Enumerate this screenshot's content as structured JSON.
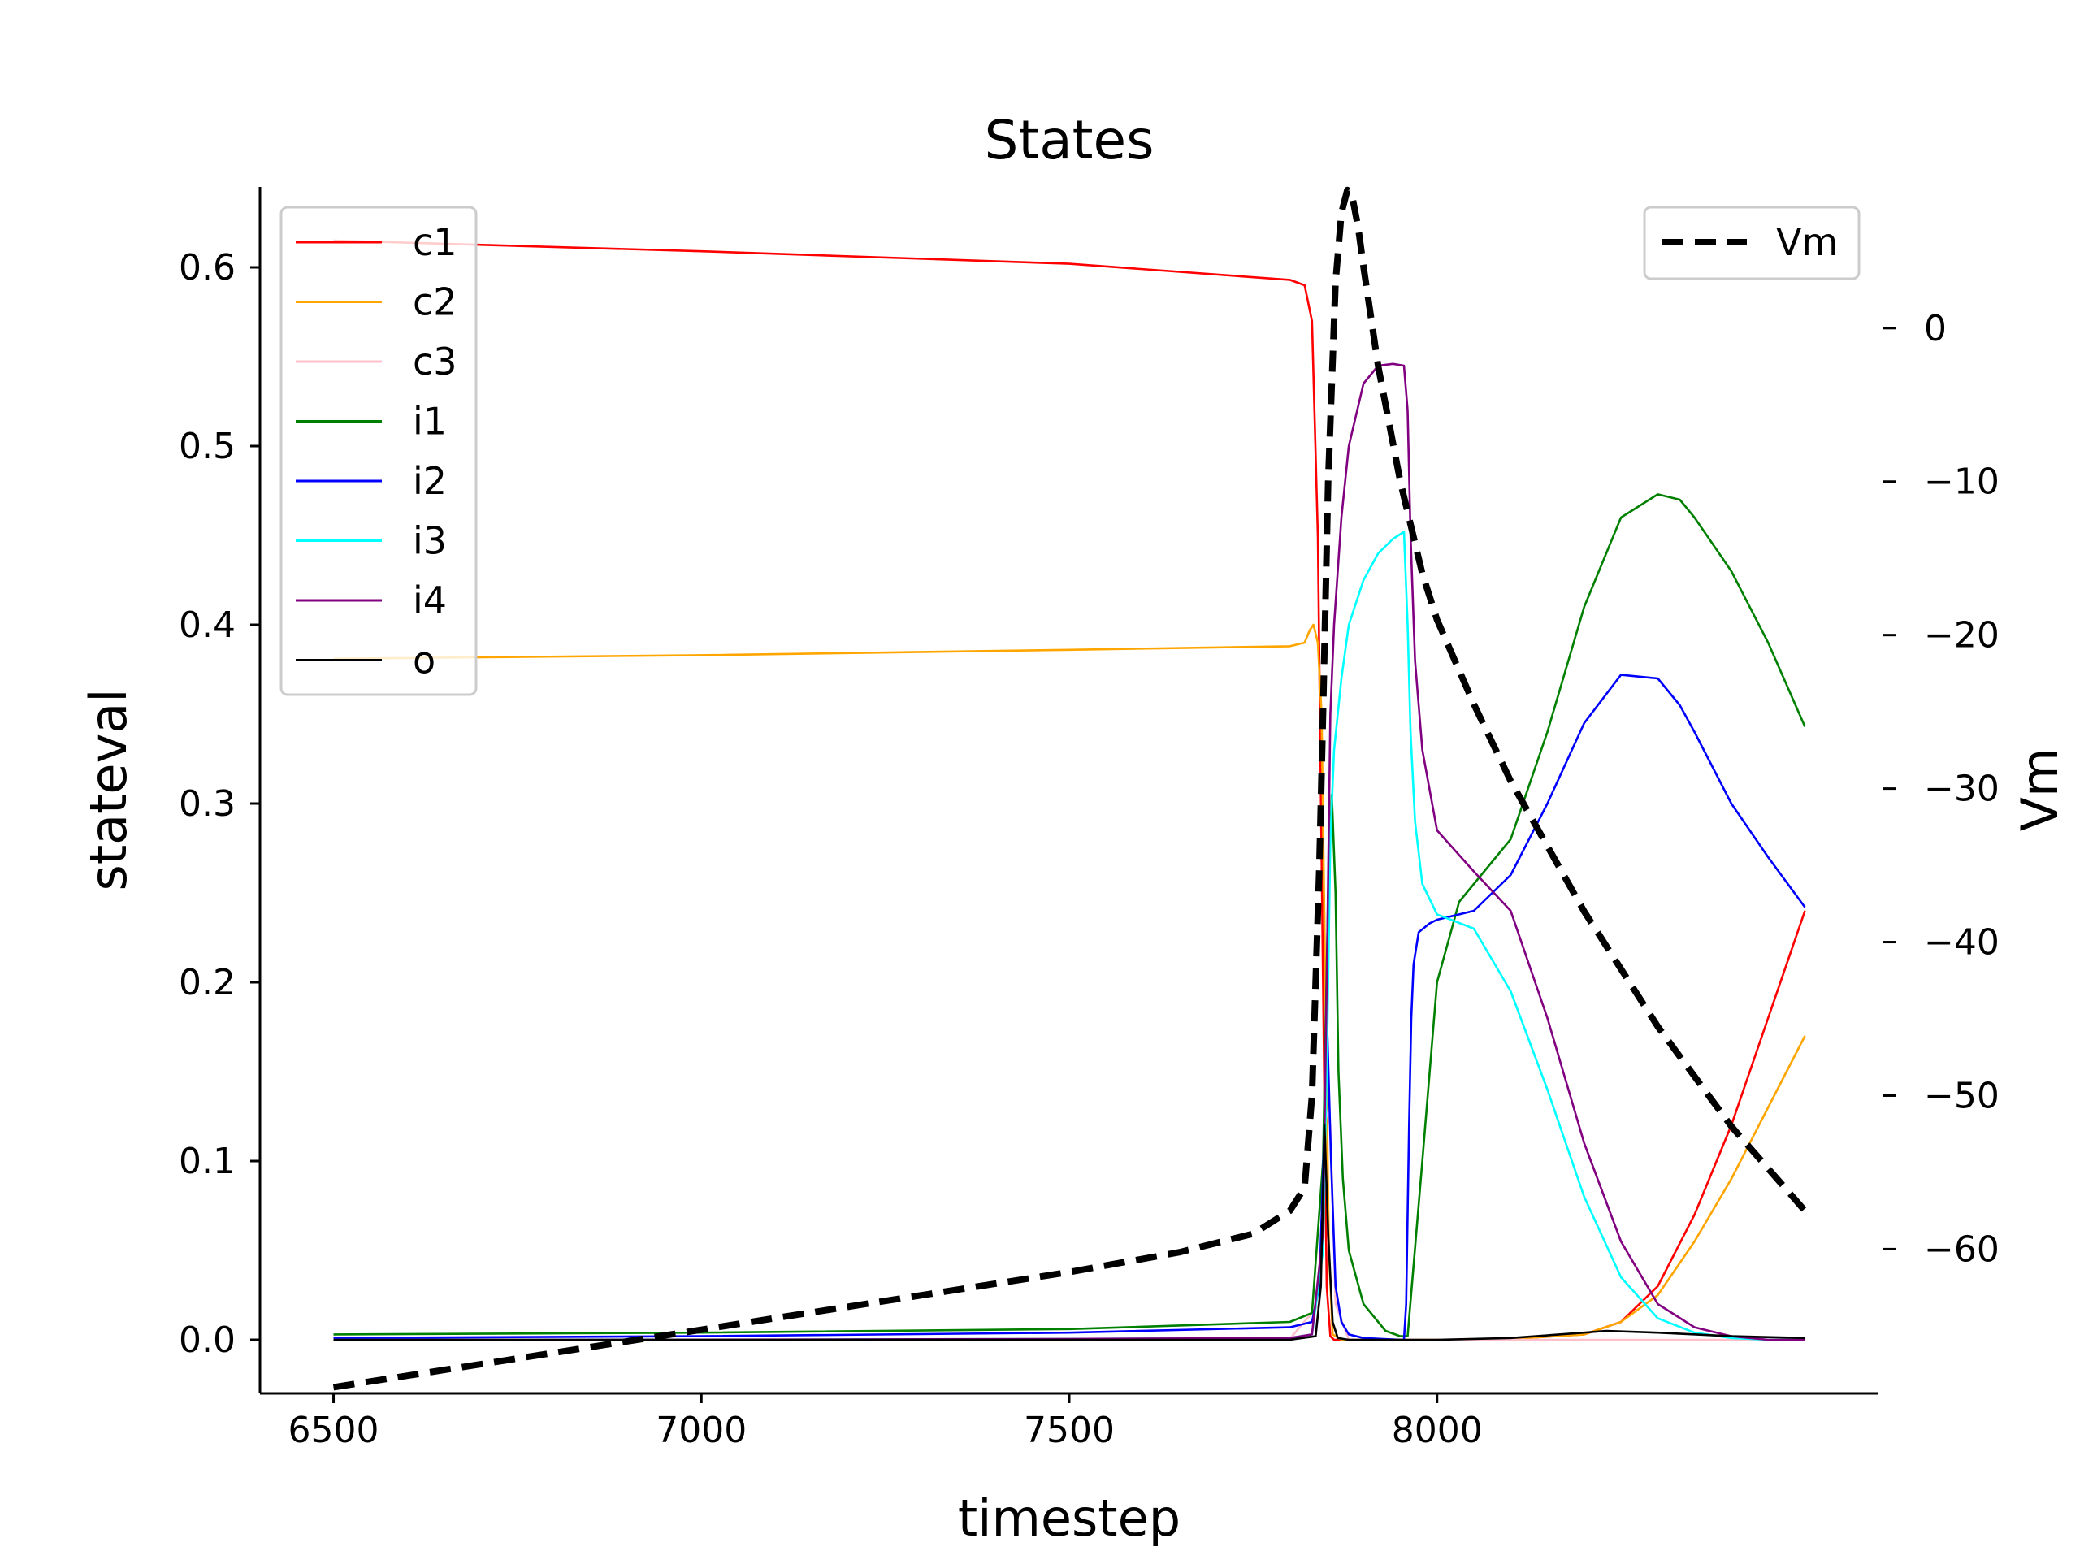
{
  "chart_data": {
    "type": "line",
    "title": "States",
    "xlabel": "timestep",
    "ylabel": "stateval",
    "y2label": "Vm",
    "xlim": [
      6400,
      8600
    ],
    "ylim": [
      -0.03,
      0.645
    ],
    "y2lim": [
      -69.4,
      9.2
    ],
    "xticks": [
      6500,
      7000,
      7500,
      8000
    ],
    "xtick_labels": [
      "6500",
      "7000",
      "7500",
      "8000"
    ],
    "yticks": [
      0.0,
      0.1,
      0.2,
      0.3,
      0.4,
      0.5,
      0.6
    ],
    "ytick_labels": [
      "0.0",
      "0.1",
      "0.2",
      "0.3",
      "0.4",
      "0.5",
      "0.6"
    ],
    "y2ticks": [
      0,
      -10,
      -20,
      -30,
      -40,
      -50,
      -60
    ],
    "y2tick_labels": [
      "0",
      "−10",
      "−20",
      "−30",
      "−40",
      "−50",
      "−60"
    ],
    "grid": false,
    "legend_left_position": "upper left",
    "legend_right_position": "upper right",
    "series": [
      {
        "name": "c1",
        "color": "#ff0000",
        "axis": "left",
        "x": [
          6500,
          7000,
          7500,
          7800,
          7820,
          7830,
          7838,
          7845,
          7850,
          7855,
          7860,
          7880,
          8000,
          8100,
          8200,
          8250,
          8300,
          8350,
          8400,
          8450,
          8500
        ],
        "y": [
          0.615,
          0.609,
          0.602,
          0.593,
          0.59,
          0.57,
          0.45,
          0.2,
          0.03,
          0.002,
          0.0,
          0.0,
          0.0,
          0.0005,
          0.003,
          0.01,
          0.03,
          0.07,
          0.12,
          0.18,
          0.24
        ]
      },
      {
        "name": "c2",
        "color": "#ffa500",
        "axis": "left",
        "x": [
          6500,
          7000,
          7500,
          7800,
          7820,
          7827,
          7832,
          7838,
          7843,
          7848,
          7853,
          7858,
          7870,
          8000,
          8100,
          8200,
          8250,
          8300,
          8350,
          8400,
          8450,
          8500
        ],
        "y": [
          0.381,
          0.383,
          0.386,
          0.388,
          0.39,
          0.397,
          0.4,
          0.39,
          0.35,
          0.2,
          0.05,
          0.003,
          0.0,
          0.0,
          0.0005,
          0.003,
          0.01,
          0.025,
          0.055,
          0.09,
          0.13,
          0.17
        ]
      },
      {
        "name": "c3",
        "color": "#ffc0cb",
        "axis": "left",
        "x": [
          6500,
          7800,
          7840,
          7848,
          7855,
          7862,
          7880,
          8500
        ],
        "y": [
          0.0,
          0.0005,
          0.02,
          0.13,
          0.12,
          0.02,
          0.0,
          0.0
        ]
      },
      {
        "name": "i1",
        "color": "#008000",
        "axis": "left",
        "x": [
          6500,
          7000,
          7500,
          7800,
          7830,
          7845,
          7852,
          7857,
          7862,
          7866,
          7872,
          7880,
          7900,
          7930,
          7950,
          7960,
          7980,
          8000,
          8030,
          8050,
          8100,
          8150,
          8200,
          8250,
          8300,
          8330,
          8350,
          8400,
          8450,
          8500
        ],
        "y": [
          0.003,
          0.004,
          0.006,
          0.01,
          0.015,
          0.1,
          0.25,
          0.305,
          0.25,
          0.15,
          0.09,
          0.05,
          0.02,
          0.005,
          0.002,
          0.002,
          0.1,
          0.2,
          0.245,
          0.255,
          0.28,
          0.34,
          0.41,
          0.46,
          0.473,
          0.47,
          0.46,
          0.43,
          0.39,
          0.343
        ]
      },
      {
        "name": "i2",
        "color": "#0000ff",
        "axis": "left",
        "x": [
          6500,
          7000,
          7500,
          7800,
          7830,
          7840,
          7847,
          7851,
          7856,
          7862,
          7870,
          7880,
          7900,
          7950,
          7955,
          7958,
          7962,
          7965,
          7968,
          7975,
          7990,
          8000,
          8050,
          8100,
          8150,
          8200,
          8250,
          8300,
          8330,
          8350,
          8400,
          8450,
          8500
        ],
        "y": [
          0.001,
          0.002,
          0.004,
          0.007,
          0.01,
          0.03,
          0.12,
          0.17,
          0.1,
          0.03,
          0.01,
          0.003,
          0.001,
          0.0,
          0.0,
          0.02,
          0.12,
          0.18,
          0.21,
          0.228,
          0.233,
          0.235,
          0.24,
          0.26,
          0.3,
          0.345,
          0.372,
          0.37,
          0.355,
          0.34,
          0.3,
          0.27,
          0.242
        ]
      },
      {
        "name": "i3",
        "color": "#00ffff",
        "axis": "left",
        "x": [
          6500,
          7000,
          7500,
          7800,
          7830,
          7845,
          7850,
          7855,
          7860,
          7870,
          7880,
          7900,
          7920,
          7940,
          7955,
          7960,
          7964,
          7970,
          7980,
          8000,
          8050,
          8100,
          8150,
          8200,
          8250,
          8300,
          8350,
          8400,
          8450,
          8500
        ],
        "y": [
          0.0,
          0.0,
          0.0005,
          0.001,
          0.003,
          0.05,
          0.15,
          0.28,
          0.33,
          0.37,
          0.4,
          0.425,
          0.44,
          0.448,
          0.452,
          0.4,
          0.34,
          0.29,
          0.255,
          0.238,
          0.23,
          0.195,
          0.14,
          0.08,
          0.035,
          0.012,
          0.004,
          0.001,
          0.0,
          0.0
        ]
      },
      {
        "name": "i4",
        "color": "#800080",
        "axis": "left",
        "x": [
          6500,
          7000,
          7500,
          7800,
          7830,
          7845,
          7850,
          7855,
          7860,
          7870,
          7880,
          7900,
          7920,
          7940,
          7955,
          7960,
          7964,
          7970,
          7980,
          8000,
          8050,
          8100,
          8150,
          8200,
          8250,
          8300,
          8350,
          8400,
          8450,
          8500
        ],
        "y": [
          0.0,
          0.0,
          0.0005,
          0.001,
          0.003,
          0.06,
          0.2,
          0.35,
          0.4,
          0.46,
          0.5,
          0.535,
          0.545,
          0.546,
          0.545,
          0.52,
          0.45,
          0.38,
          0.33,
          0.285,
          0.262,
          0.24,
          0.18,
          0.11,
          0.055,
          0.02,
          0.007,
          0.002,
          0.0,
          0.0
        ]
      },
      {
        "name": "o",
        "color": "#000000",
        "axis": "left",
        "x": [
          6500,
          7800,
          7835,
          7842,
          7847,
          7852,
          7858,
          7865,
          7880,
          8000,
          8100,
          8200,
          8230,
          8300,
          8400,
          8500
        ],
        "y": [
          0.0,
          0.0,
          0.002,
          0.03,
          0.12,
          0.06,
          0.01,
          0.001,
          0.0,
          0.0,
          0.001,
          0.004,
          0.005,
          0.004,
          0.002,
          0.001
        ]
      },
      {
        "name": "Vm",
        "color": "#000000",
        "axis": "right",
        "dashed": true,
        "x": [
          6500,
          6700,
          6900,
          7100,
          7300,
          7500,
          7650,
          7750,
          7800,
          7820,
          7830,
          7840,
          7845,
          7852,
          7862,
          7870,
          7878,
          7885,
          7893,
          7900,
          7920,
          7950,
          7980,
          8000,
          8050,
          8100,
          8200,
          8300,
          8400,
          8500
        ],
        "y": [
          -69.0,
          -67.5,
          -66.0,
          -64.5,
          -63.0,
          -61.5,
          -60.2,
          -59.0,
          -57.5,
          -56.0,
          -50.0,
          -35.0,
          -25.0,
          -10.0,
          3.0,
          7.5,
          9.0,
          8.5,
          6.5,
          4.0,
          -2.5,
          -10.0,
          -16.0,
          -19.0,
          -24.5,
          -29.5,
          -38.0,
          -45.5,
          -52.0,
          -57.5
        ]
      }
    ]
  }
}
